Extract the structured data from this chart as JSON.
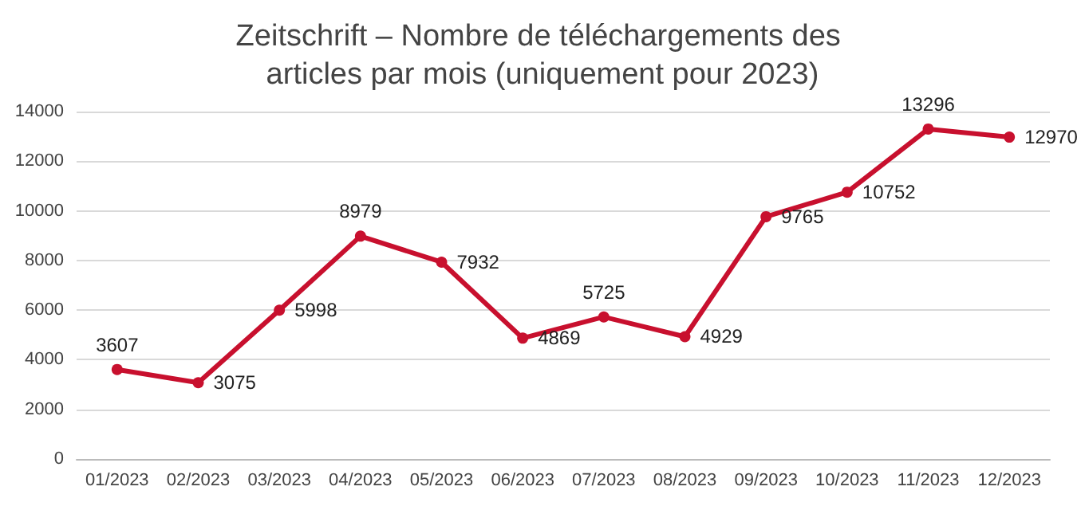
{
  "chart_data": {
    "type": "line",
    "title": "Zeitschrift – Nombre de téléchargements des articles par mois (uniquement pour 2023)",
    "categories": [
      "01/2023",
      "02/2023",
      "03/2023",
      "04/2023",
      "05/2023",
      "06/2023",
      "07/2023",
      "08/2023",
      "09/2023",
      "10/2023",
      "11/2023",
      "12/2023"
    ],
    "series": [
      {
        "color": "#c8102e",
        "values": [
          3607,
          3075,
          5998,
          8979,
          7932,
          4869,
          5725,
          4929,
          9765,
          10752,
          13296,
          12970
        ]
      }
    ],
    "ylim": [
      0,
      14000
    ],
    "yticks": [
      0,
      2000,
      4000,
      6000,
      8000,
      10000,
      12000,
      14000
    ],
    "grid": "y",
    "marker": "circle",
    "line_style": "solid",
    "data_labels": true
  }
}
